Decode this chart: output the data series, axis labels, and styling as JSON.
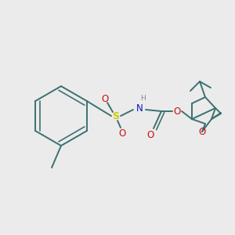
{
  "bg_color": "#ebebeb",
  "bond_color": "#3d7070",
  "atom_colors": {
    "H": "#888888",
    "N": "#1010cc",
    "O": "#cc1010",
    "S": "#cccc00"
  },
  "bond_width": 1.4,
  "figsize": [
    3.0,
    3.0
  ],
  "dpi": 100
}
